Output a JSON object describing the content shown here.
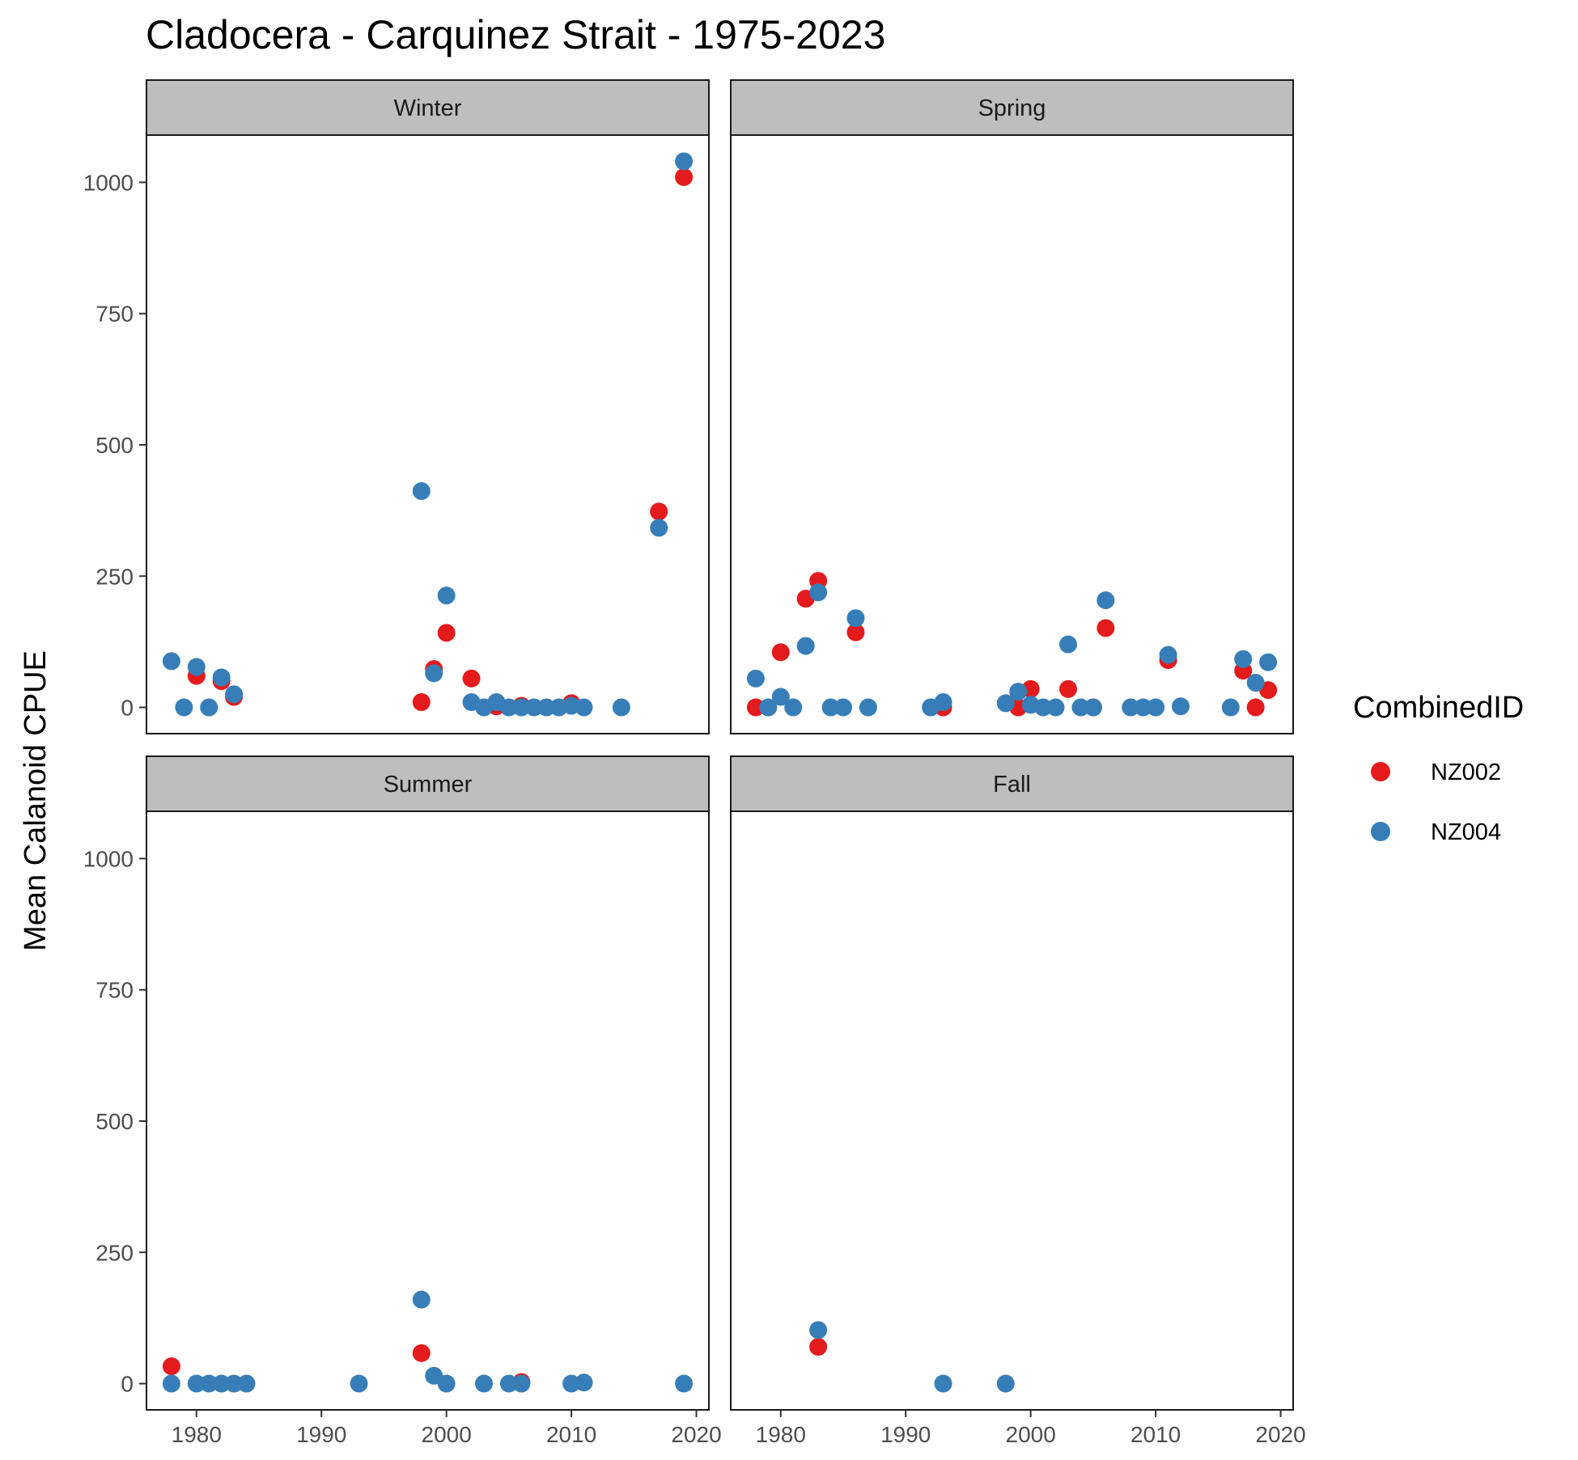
{
  "chart_data": {
    "type": "scatter",
    "title": "Cladocera - Carquinez Strait - 1975-2023",
    "xlabel": "",
    "ylabel": "Mean Calanoid CPUE",
    "xlim": [
      1976,
      2021
    ],
    "ylim": [
      -50,
      1090
    ],
    "x_ticks": [
      1980,
      1990,
      2000,
      2010,
      2020
    ],
    "y_ticks": [
      0,
      250,
      500,
      750,
      1000
    ],
    "grid": false,
    "legend": {
      "title": "CombinedID",
      "position": "right"
    },
    "series_meta": [
      {
        "name": "NZ002",
        "color": "#e41a1c"
      },
      {
        "name": "NZ004",
        "color": "#377eb8"
      }
    ],
    "panels": [
      {
        "label": "Winter",
        "series": [
          {
            "name": "NZ002",
            "x": [
              1980,
              1982,
              1983,
              1998,
              1999,
              2000,
              2002,
              2004,
              2006,
              2010,
              2017,
              2019
            ],
            "y": [
              60,
              50,
              20,
              10,
              73,
              142,
              55,
              2,
              3,
              8,
              373,
              1010
            ]
          },
          {
            "name": "NZ004",
            "x": [
              1978,
              1979,
              1980,
              1981,
              1982,
              1983,
              1998,
              1999,
              2000,
              2002,
              2003,
              2004,
              2005,
              2006,
              2007,
              2008,
              2009,
              2010,
              2011,
              2014,
              2017,
              2019
            ],
            "y": [
              88,
              0,
              77,
              0,
              57,
              25,
              412,
              65,
              213,
              10,
              0,
              10,
              0,
              0,
              0,
              0,
              0,
              3,
              0,
              0,
              342,
              1040
            ]
          }
        ]
      },
      {
        "label": "Spring",
        "series": [
          {
            "name": "NZ002",
            "x": [
              1978,
              1980,
              1982,
              1983,
              1986,
              1993,
              1999,
              2000,
              2003,
              2005,
              2006,
              2011,
              2017,
              2018,
              2019
            ],
            "y": [
              0,
              105,
              207,
              241,
              143,
              0,
              0,
              35,
              35,
              0,
              151,
              90,
              70,
              0,
              33
            ]
          },
          {
            "name": "NZ004",
            "x": [
              1978,
              1979,
              1980,
              1981,
              1982,
              1983,
              1984,
              1985,
              1986,
              1987,
              1992,
              1993,
              1998,
              1999,
              2000,
              2001,
              2002,
              2003,
              2004,
              2005,
              2006,
              2008,
              2009,
              2010,
              2011,
              2012,
              2016,
              2017,
              2018,
              2019
            ],
            "y": [
              55,
              0,
              20,
              0,
              117,
              219,
              0,
              0,
              170,
              0,
              0,
              10,
              8,
              30,
              5,
              0,
              0,
              120,
              0,
              0,
              204,
              0,
              0,
              0,
              100,
              2,
              0,
              92,
              47,
              86
            ]
          }
        ]
      },
      {
        "label": "Summer",
        "series": [
          {
            "name": "NZ002",
            "x": [
              1978,
              1998,
              2006
            ],
            "y": [
              33,
              58,
              3
            ]
          },
          {
            "name": "NZ004",
            "x": [
              1978,
              1980,
              1981,
              1982,
              1983,
              1984,
              1993,
              1998,
              1999,
              2000,
              2003,
              2005,
              2006,
              2010,
              2011,
              2019
            ],
            "y": [
              0,
              0,
              0,
              0,
              0,
              0,
              0,
              160,
              15,
              0,
              0,
              0,
              0,
              0,
              2,
              0
            ]
          }
        ]
      },
      {
        "label": "Fall",
        "series": [
          {
            "name": "NZ002",
            "x": [
              1983
            ],
            "y": [
              70
            ]
          },
          {
            "name": "NZ004",
            "x": [
              1983,
              1993,
              1998
            ],
            "y": [
              102,
              0,
              0
            ]
          }
        ]
      }
    ]
  }
}
